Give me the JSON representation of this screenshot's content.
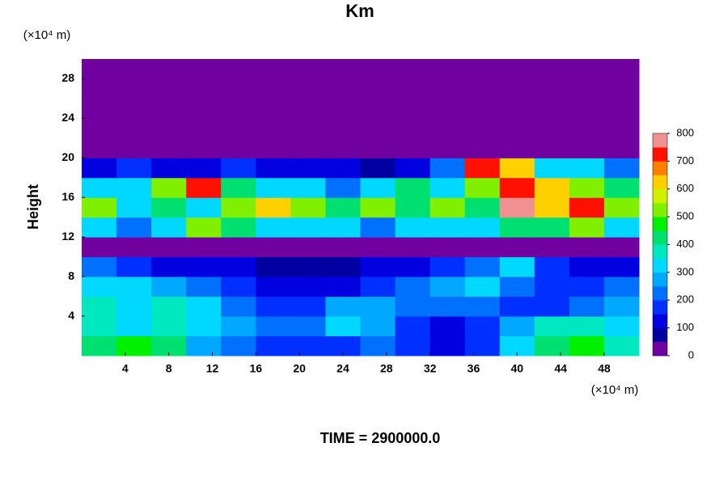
{
  "chart_data": {
    "type": "heatmap",
    "title": "Km",
    "ylabel": "Height",
    "x_unit": "(×10⁴ m)",
    "y_unit": "(×10⁴ m)",
    "annotation": "TIME = 2900000.0",
    "xlim": [
      0,
      51.2
    ],
    "ylim": [
      0,
      30
    ],
    "xticks": [
      4,
      8,
      12,
      16,
      20,
      24,
      28,
      32,
      36,
      40,
      44,
      48
    ],
    "yticks": [
      4,
      8,
      12,
      16,
      20,
      24,
      28
    ],
    "x_edges": [
      0,
      3.2,
      6.4,
      9.6,
      12.8,
      16,
      19.2,
      22.4,
      25.6,
      28.8,
      32,
      35.2,
      38.4,
      41.6,
      44.8,
      48,
      51.2
    ],
    "y_edges": [
      0,
      2,
      4,
      6,
      8,
      10,
      12,
      14,
      16,
      18,
      20,
      22,
      24,
      26,
      28,
      30
    ],
    "z": [
      [
        400,
        450,
        400,
        250,
        200,
        150,
        150,
        150,
        200,
        150,
        100,
        150,
        300,
        400,
        450,
        350
      ],
      [
        350,
        300,
        350,
        300,
        250,
        200,
        200,
        300,
        250,
        150,
        100,
        150,
        250,
        350,
        350,
        300
      ],
      [
        350,
        300,
        350,
        300,
        200,
        150,
        150,
        250,
        250,
        200,
        200,
        200,
        150,
        150,
        200,
        250
      ],
      [
        300,
        300,
        250,
        200,
        150,
        100,
        100,
        100,
        150,
        200,
        250,
        300,
        200,
        150,
        150,
        200
      ],
      [
        200,
        150,
        100,
        100,
        100,
        80,
        80,
        80,
        100,
        100,
        150,
        200,
        300,
        150,
        100,
        100
      ],
      [
        0,
        0,
        0,
        0,
        0,
        0,
        0,
        0,
        0,
        0,
        0,
        0,
        0,
        0,
        0,
        0
      ],
      [
        300,
        200,
        300,
        500,
        400,
        300,
        300,
        300,
        200,
        300,
        300,
        300,
        400,
        400,
        500,
        300
      ],
      [
        500,
        300,
        400,
        300,
        500,
        600,
        500,
        400,
        500,
        400,
        500,
        400,
        800,
        600,
        700,
        500
      ],
      [
        300,
        300,
        500,
        700,
        400,
        300,
        300,
        200,
        300,
        400,
        300,
        500,
        700,
        600,
        500,
        400
      ],
      [
        100,
        150,
        100,
        100,
        150,
        100,
        100,
        100,
        50,
        100,
        200,
        700,
        600,
        300,
        300,
        200
      ],
      [
        0,
        0,
        0,
        0,
        0,
        0,
        0,
        0,
        0,
        0,
        0,
        0,
        0,
        0,
        0,
        0
      ],
      [
        0,
        0,
        0,
        0,
        0,
        0,
        0,
        0,
        0,
        0,
        0,
        0,
        0,
        0,
        0,
        0
      ],
      [
        0,
        0,
        0,
        0,
        0,
        0,
        0,
        0,
        0,
        0,
        0,
        0,
        0,
        0,
        0,
        0
      ],
      [
        0,
        0,
        0,
        0,
        0,
        0,
        0,
        0,
        0,
        0,
        0,
        0,
        0,
        0,
        0,
        0
      ],
      [
        0,
        0,
        0,
        0,
        0,
        0,
        0,
        0,
        0,
        0,
        0,
        0,
        0,
        0,
        0,
        0
      ]
    ],
    "clevels": [
      0,
      50,
      100,
      150,
      200,
      250,
      300,
      350,
      400,
      450,
      500,
      550,
      600,
      650,
      700,
      750,
      800
    ],
    "colors": [
      "#7000a0",
      "#0000a0",
      "#0000e0",
      "#0030ff",
      "#0070ff",
      "#00a8ff",
      "#00d8ff",
      "#00e8c0",
      "#00e070",
      "#00f000",
      "#80f000",
      "#d0f000",
      "#ffd000",
      "#ff8000",
      "#ff1000",
      "#f09090"
    ],
    "cticks": [
      0,
      100,
      200,
      300,
      400,
      500,
      600,
      700,
      800
    ]
  }
}
